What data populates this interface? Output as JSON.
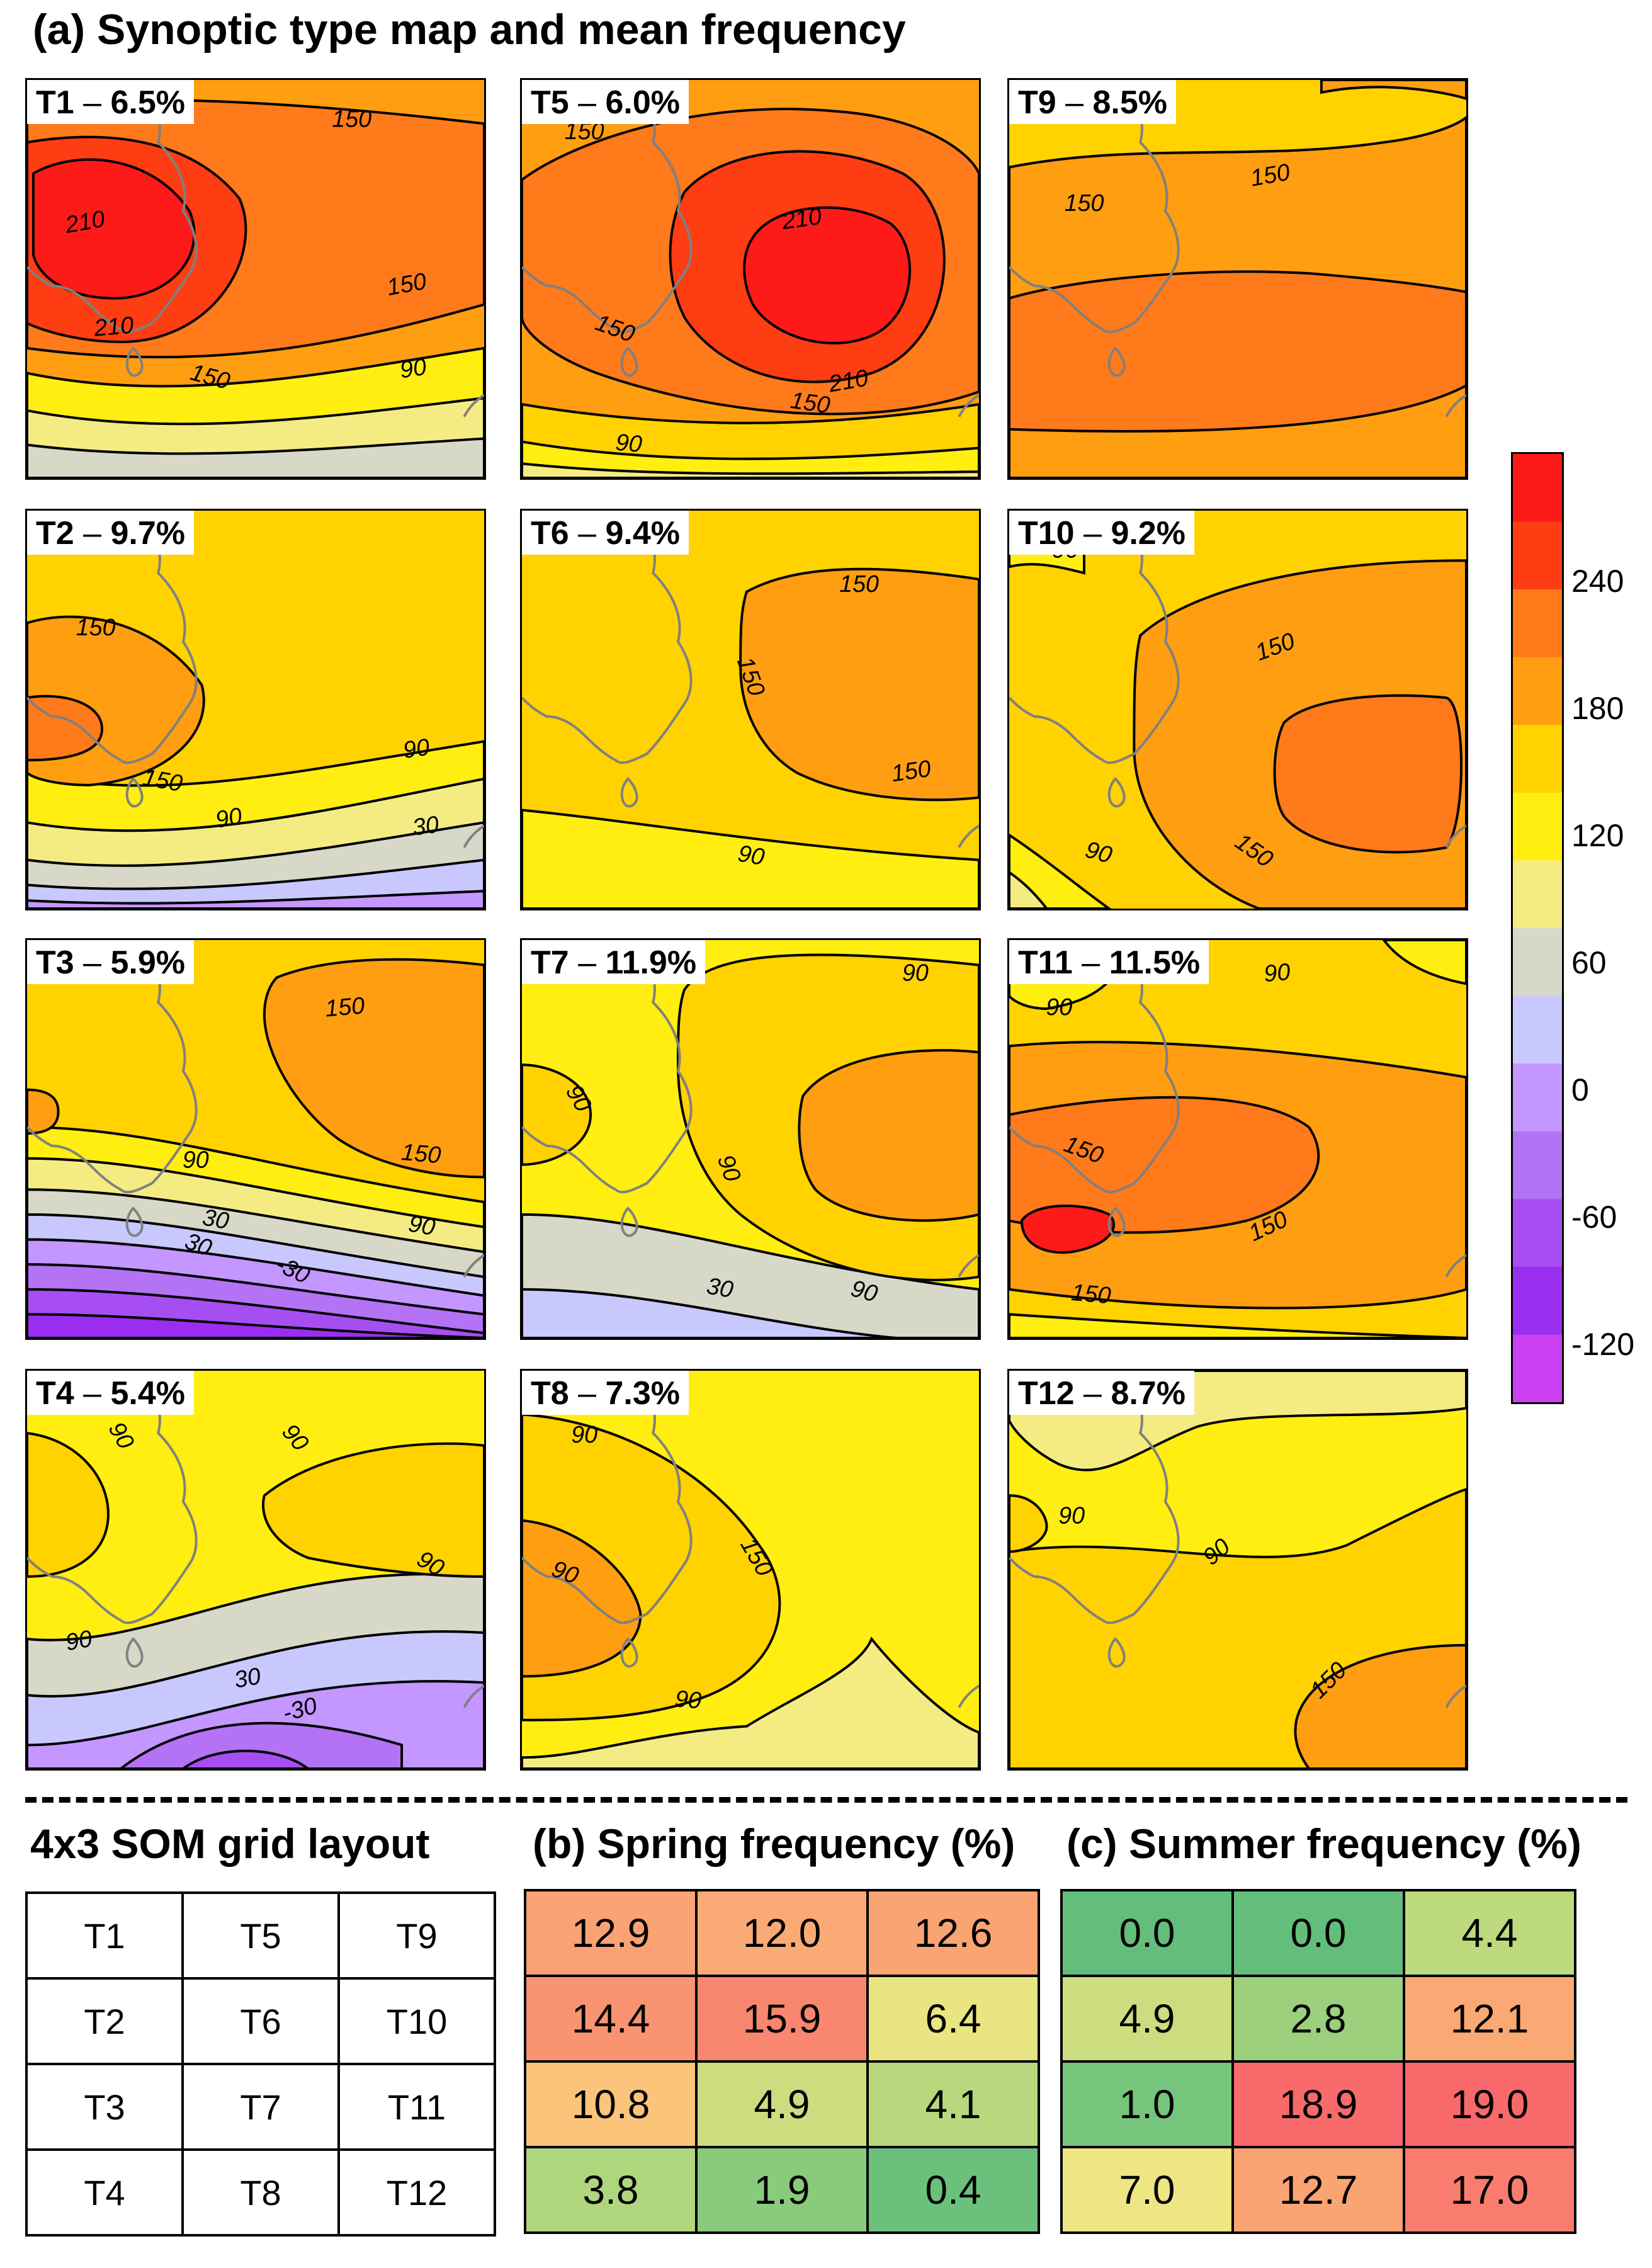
{
  "figure_title": "(a) Synoptic type map and mean frequency",
  "chart_data": [
    {
      "type": "heatmap",
      "title": "(a) Synoptic type map and mean frequency",
      "colorbar": {
        "ticks": [
          "240",
          "180",
          "120",
          "60",
          "0",
          "-60",
          "-120"
        ],
        "levels": [
          270,
          240,
          210,
          180,
          150,
          120,
          90,
          60,
          30,
          0,
          -30,
          -60,
          -90,
          -120,
          -150
        ],
        "colors": [
          "#ff1a1a",
          "#ff3d12",
          "#ff7a1a",
          "#ff9e10",
          "#ffd200",
          "#ffee10",
          "#f4ec82",
          "#d8d8c8",
          "#c8c8ff",
          "#c496ff",
          "#b472f5",
          "#a64ef2",
          "#9a2ef0",
          "#cc3ff2"
        ]
      },
      "panels": [
        {
          "id": "T1",
          "label": "T1",
          "freq": "6.5%",
          "contour_labels": [
            "150",
            "210",
            "150",
            "210",
            "150",
            "90"
          ]
        },
        {
          "id": "T5",
          "label": "T5",
          "freq": "6.0%",
          "contour_labels": [
            "150",
            "210",
            "150",
            "210",
            "150",
            "90"
          ]
        },
        {
          "id": "T9",
          "label": "T9",
          "freq": "8.5%",
          "contour_labels": [
            "150",
            "150"
          ]
        },
        {
          "id": "T2",
          "label": "T2",
          "freq": "9.7%",
          "contour_labels": [
            "150",
            "150",
            "90",
            "90",
            "30"
          ]
        },
        {
          "id": "T6",
          "label": "T6",
          "freq": "9.4%",
          "contour_labels": [
            "150",
            "150",
            "150",
            "90"
          ]
        },
        {
          "id": "T10",
          "label": "T10",
          "freq": "9.2%",
          "contour_labels": [
            "90",
            "150",
            "90",
            "150"
          ]
        },
        {
          "id": "T3",
          "label": "T3",
          "freq": "5.9%",
          "contour_labels": [
            "150",
            "150",
            "90",
            "90",
            "30",
            "30",
            "-30"
          ]
        },
        {
          "id": "T7",
          "label": "T7",
          "freq": "11.9%",
          "contour_labels": [
            "90",
            "90",
            "90",
            "30",
            "90"
          ]
        },
        {
          "id": "T11",
          "label": "T11",
          "freq": "11.5%",
          "contour_labels": [
            "90",
            "90",
            "150",
            "150",
            "150"
          ]
        },
        {
          "id": "T4",
          "label": "T4",
          "freq": "5.4%",
          "contour_labels": [
            "90",
            "90",
            "90",
            "90",
            "30",
            "-30"
          ]
        },
        {
          "id": "T8",
          "label": "T8",
          "freq": "7.3%",
          "contour_labels": [
            "90",
            "150",
            "90",
            "90"
          ]
        },
        {
          "id": "T12",
          "label": "T12",
          "freq": "8.7%",
          "contour_labels": [
            "90",
            "90",
            "150"
          ]
        }
      ]
    },
    {
      "type": "table",
      "title": "(b) Spring frequency (%)",
      "rows": [
        [
          "12.9",
          "12.0",
          "12.6"
        ],
        [
          "14.4",
          "15.9",
          "6.4"
        ],
        [
          "10.8",
          "4.9",
          "4.1"
        ],
        [
          "3.8",
          "1.9",
          "0.4"
        ]
      ]
    },
    {
      "type": "table",
      "title": "(c) Summer frequency (%)",
      "rows": [
        [
          "0.0",
          "0.0",
          "4.4"
        ],
        [
          "4.9",
          "2.8",
          "12.1"
        ],
        [
          "1.0",
          "18.9",
          "19.0"
        ],
        [
          "7.0",
          "12.7",
          "17.0"
        ]
      ]
    }
  ],
  "layout_grid": {
    "title": "4x3 SOM grid layout",
    "rows": [
      [
        "T1",
        "T5",
        "T9"
      ],
      [
        "T2",
        "T6",
        "T10"
      ],
      [
        "T3",
        "T7",
        "T11"
      ],
      [
        "T4",
        "T8",
        "T12"
      ]
    ]
  }
}
